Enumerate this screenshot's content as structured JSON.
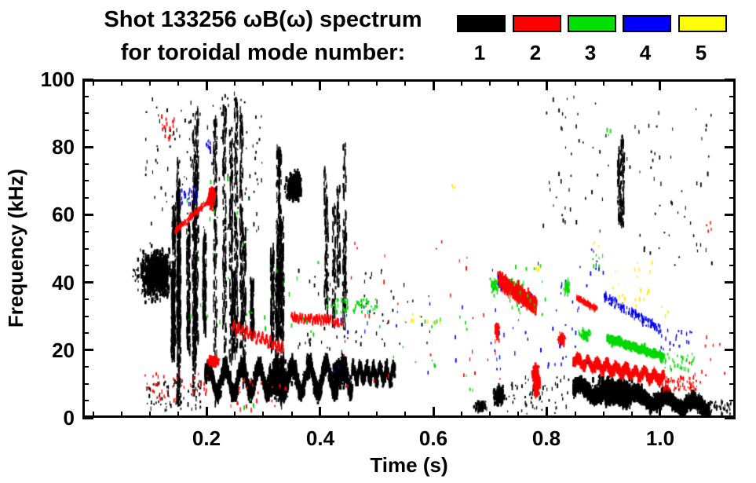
{
  "title": {
    "line1": "Shot 133256 ωB(ω) spectrum",
    "line2": "for toroidal mode number:"
  },
  "legend": {
    "labels": [
      "1",
      "2",
      "3",
      "4",
      "5"
    ],
    "colors": [
      "#000000",
      "#FF0000",
      "#00E000",
      "#0000FF",
      "#FFFF00"
    ]
  },
  "axes": {
    "x": {
      "label": "Time (s)",
      "tick_labels": [
        "0.2",
        "0.4",
        "0.6",
        "0.8",
        "1.0"
      ],
      "ticks": [
        0.2,
        0.4,
        0.6,
        0.8,
        1.0
      ],
      "minor_step": 0.05
    },
    "y": {
      "label": "Frequency (kHz)",
      "tick_labels": [
        "0",
        "20",
        "40",
        "60",
        "80",
        "100"
      ],
      "ticks": [
        0,
        20,
        40,
        60,
        80,
        100
      ],
      "minor_step": 5
    }
  },
  "chart_data": {
    "type": "scatter",
    "title": "Shot 133256 ωB(ω) spectrum for toroidal mode number: 1 2 3 4 5",
    "xlabel": "Time (s)",
    "ylabel": "Frequency (kHz)",
    "xlim": [
      -0.019,
      1.133
    ],
    "ylim": [
      0,
      100
    ],
    "grid": false,
    "legend_position": "top-right",
    "series_colors": {
      "1": "#000000",
      "2": "#FF0000",
      "3": "#00D800",
      "4": "#0000F0",
      "5": "#FFE800"
    },
    "series_meaning": "toroidal mode number n = 1..5",
    "clusters": [
      {
        "mode": 1,
        "shape": "blob",
        "t": [
          0.075,
          0.145
        ],
        "f": [
          33,
          52
        ],
        "n": 1000,
        "size": [
          3,
          8
        ]
      },
      {
        "mode": 1,
        "shape": "scatter",
        "t": [
          0.065,
          0.085
        ],
        "f": [
          40,
          44
        ],
        "n": 12
      },
      {
        "mode": 1,
        "shape": "streaks",
        "t": [
          0.128,
          0.262
        ],
        "f": [
          2,
          97
        ],
        "cols": 16,
        "n": 2200
      },
      {
        "mode": 1,
        "shape": "scatter",
        "t": [
          0.09,
          0.3
        ],
        "f": [
          55,
          96
        ],
        "n": 140
      },
      {
        "mode": 1,
        "shape": "scatter",
        "t": [
          0.09,
          0.19
        ],
        "f": [
          2,
          11
        ],
        "n": 70
      },
      {
        "mode": 1,
        "shape": "streaks",
        "t": [
          0.262,
          0.345
        ],
        "f": [
          2,
          97
        ],
        "cols": 8,
        "n": 900
      },
      {
        "mode": 1,
        "shape": "blob",
        "t": [
          0.335,
          0.372
        ],
        "f": [
          63,
          74
        ],
        "n": 420,
        "size": [
          3,
          8
        ]
      },
      {
        "mode": 1,
        "shape": "streaks",
        "t": [
          0.375,
          0.455
        ],
        "f": [
          25,
          92
        ],
        "cols": 6,
        "n": 350
      },
      {
        "mode": 1,
        "shape": "band",
        "t": [
          0.196,
          0.455
        ],
        "fc": [
          11,
          12
        ],
        "spread": 4.8,
        "wave": [
          4,
          55
        ],
        "n": 2800,
        "size": [
          3,
          9
        ]
      },
      {
        "mode": 1,
        "shape": "blob",
        "t": [
          0.3,
          0.35
        ],
        "f": [
          4,
          18
        ],
        "n": 500,
        "size": [
          3,
          9
        ]
      },
      {
        "mode": 1,
        "shape": "blob",
        "t": [
          0.415,
          0.45
        ],
        "f": [
          8,
          18
        ],
        "n": 300,
        "size": [
          3,
          9
        ]
      },
      {
        "mode": 1,
        "shape": "band",
        "t": [
          0.455,
          0.53
        ],
        "fc": [
          13,
          13
        ],
        "spread": 3.5,
        "wave": [
          2,
          40
        ],
        "n": 600,
        "size": [
          3,
          8
        ]
      },
      {
        "mode": 1,
        "shape": "scatter",
        "t": [
          0.5,
          0.62
        ],
        "f": [
          20,
          42
        ],
        "n": 8
      },
      {
        "mode": 1,
        "shape": "blob",
        "t": [
          0.665,
          0.697
        ],
        "f": [
          1,
          6
        ],
        "n": 90
      },
      {
        "mode": 1,
        "shape": "blob",
        "t": [
          0.7,
          0.727
        ],
        "f": [
          3,
          10
        ],
        "n": 160,
        "size": [
          3,
          7
        ]
      },
      {
        "mode": 1,
        "shape": "scatter",
        "t": [
          0.73,
          0.84
        ],
        "f": [
          1,
          12
        ],
        "n": 60
      },
      {
        "mode": 1,
        "shape": "band",
        "t": [
          0.845,
          1.085
        ],
        "fc": [
          8.5,
          3.2
        ],
        "spread": 3.5,
        "wave": [
          1.5,
          30
        ],
        "n": 3000,
        "size": [
          3,
          8
        ]
      },
      {
        "mode": 1,
        "shape": "blob",
        "t": [
          0.875,
          0.96
        ],
        "f": [
          3,
          13
        ],
        "n": 800,
        "size": [
          3,
          9
        ]
      },
      {
        "mode": 1,
        "shape": "streaks",
        "t": [
          0.922,
          0.938
        ],
        "f": [
          55,
          98
        ],
        "cols": 2,
        "n": 120
      },
      {
        "mode": 1,
        "shape": "scatter",
        "t": [
          0.79,
          0.92
        ],
        "f": [
          55,
          95
        ],
        "n": 40
      },
      {
        "mode": 1,
        "shape": "scatter",
        "t": [
          0.94,
          1.09
        ],
        "f": [
          45,
          93
        ],
        "n": 50
      },
      {
        "mode": 1,
        "shape": "scatter",
        "t": [
          1.085,
          1.125
        ],
        "f": [
          1,
          5
        ],
        "n": 40
      },
      {
        "mode": 1,
        "shape": "scatter",
        "t": [
          0.36,
          0.53
        ],
        "f": [
          20,
          45
        ],
        "n": 60
      },
      {
        "mode": 2,
        "shape": "band",
        "t": [
          0.143,
          0.215
        ],
        "fc": [
          55,
          66
        ],
        "spread": 1.5,
        "n": 160
      },
      {
        "mode": 2,
        "shape": "blob",
        "t": [
          0.198,
          0.216
        ],
        "f": [
          61,
          69
        ],
        "n": 150,
        "size": [
          3,
          7
        ]
      },
      {
        "mode": 2,
        "shape": "scatter",
        "t": [
          0.118,
          0.142
        ],
        "f": [
          82,
          89
        ],
        "n": 18
      },
      {
        "mode": 2,
        "shape": "band",
        "t": [
          0.245,
          0.335
        ],
        "fc": [
          27,
          20.5
        ],
        "spread": 1.4,
        "wave": [
          1.2,
          80
        ],
        "n": 260
      },
      {
        "mode": 2,
        "shape": "band",
        "t": [
          0.348,
          0.418
        ],
        "fc": [
          29.5,
          29
        ],
        "spread": 1.0,
        "wave": [
          0.8,
          90
        ],
        "n": 240
      },
      {
        "mode": 2,
        "shape": "scatter",
        "t": [
          0.42,
          0.44
        ],
        "f": [
          27,
          29
        ],
        "n": 30
      },
      {
        "mode": 2,
        "shape": "blob",
        "t": [
          0.199,
          0.223
        ],
        "f": [
          15,
          18.5
        ],
        "n": 160,
        "size": [
          3,
          7
        ]
      },
      {
        "mode": 2,
        "shape": "scatter",
        "t": [
          0.09,
          0.21
        ],
        "f": [
          5,
          13
        ],
        "n": 45
      },
      {
        "mode": 2,
        "shape": "scatter",
        "t": [
          0.24,
          0.34
        ],
        "f": [
          2,
          12
        ],
        "n": 25
      },
      {
        "mode": 2,
        "shape": "band",
        "t": [
          0.712,
          0.78
        ],
        "fc": [
          41,
          33
        ],
        "spread": 2.2,
        "wave": [
          1.5,
          120
        ],
        "n": 500,
        "size": [
          3,
          8
        ]
      },
      {
        "mode": 2,
        "shape": "blob",
        "t": [
          0.706,
          0.716
        ],
        "f": [
          22,
          30
        ],
        "n": 90
      },
      {
        "mode": 2,
        "shape": "blob",
        "t": [
          0.772,
          0.788
        ],
        "f": [
          5,
          17
        ],
        "n": 260,
        "size": [
          3,
          8
        ]
      },
      {
        "mode": 2,
        "shape": "blob",
        "t": [
          0.817,
          0.833
        ],
        "f": [
          20.5,
          25.5
        ],
        "n": 90
      },
      {
        "mode": 2,
        "shape": "band",
        "t": [
          0.852,
          0.888
        ],
        "fc": [
          35.5,
          32
        ],
        "spread": 1.3,
        "n": 110
      },
      {
        "mode": 2,
        "shape": "band",
        "t": [
          0.845,
          1.005
        ],
        "fc": [
          17,
          11.5
        ],
        "spread": 2.2,
        "wave": [
          1,
          60
        ],
        "n": 1100,
        "size": [
          3,
          8
        ]
      },
      {
        "mode": 2,
        "shape": "scatter",
        "t": [
          1.0,
          1.065
        ],
        "f": [
          8,
          12
        ],
        "n": 70
      },
      {
        "mode": 2,
        "shape": "scatter",
        "t": [
          0.44,
          0.73
        ],
        "f": [
          8,
          52
        ],
        "n": 30
      },
      {
        "mode": 2,
        "shape": "scatter",
        "t": [
          1.05,
          1.12
        ],
        "f": [
          10,
          25
        ],
        "n": 12
      },
      {
        "mode": 2,
        "shape": "scatter",
        "t": [
          1.08,
          1.09
        ],
        "f": [
          54,
          58
        ],
        "n": 4
      },
      {
        "mode": 3,
        "shape": "scatter",
        "t": [
          0.41,
          0.5
        ],
        "f": [
          31,
          35
        ],
        "n": 60
      },
      {
        "mode": 3,
        "shape": "scatter",
        "t": [
          0.15,
          0.28
        ],
        "f": [
          28,
          72
        ],
        "n": 22
      },
      {
        "mode": 3,
        "shape": "scatter",
        "t": [
          0.3,
          0.41
        ],
        "f": [
          20,
          46
        ],
        "n": 18
      },
      {
        "mode": 3,
        "shape": "blob",
        "t": [
          0.698,
          0.716
        ],
        "f": [
          36,
          42
        ],
        "n": 55
      },
      {
        "mode": 3,
        "shape": "blob",
        "t": [
          0.828,
          0.842
        ],
        "f": [
          35,
          42
        ],
        "n": 45
      },
      {
        "mode": 3,
        "shape": "blob",
        "t": [
          0.853,
          0.882
        ],
        "f": [
          22,
          27
        ],
        "n": 70
      },
      {
        "mode": 3,
        "shape": "band",
        "t": [
          0.905,
          1.005
        ],
        "fc": [
          23.5,
          18
        ],
        "spread": 2.0,
        "n": 450,
        "size": [
          3,
          7
        ]
      },
      {
        "mode": 3,
        "shape": "scatter",
        "t": [
          1.0,
          1.06
        ],
        "f": [
          14,
          19
        ],
        "n": 35
      },
      {
        "mode": 3,
        "shape": "scatter",
        "t": [
          0.5,
          0.67
        ],
        "f": [
          8,
          30
        ],
        "n": 18
      },
      {
        "mode": 3,
        "shape": "scatter",
        "t": [
          0.88,
          0.915
        ],
        "f": [
          44,
          50
        ],
        "n": 6
      },
      {
        "mode": 3,
        "shape": "scatter",
        "t": [
          0.905,
          0.915
        ],
        "f": [
          83,
          86
        ],
        "n": 3
      },
      {
        "mode": 3,
        "shape": "scatter",
        "t": [
          0.73,
          0.8
        ],
        "f": [
          30,
          45
        ],
        "n": 25
      },
      {
        "mode": 3,
        "shape": "scatter",
        "t": [
          0.26,
          0.285
        ],
        "f": [
          2,
          6
        ],
        "n": 4
      },
      {
        "mode": 4,
        "shape": "scatter",
        "t": [
          0.152,
          0.182
        ],
        "f": [
          63,
          68
        ],
        "n": 30
      },
      {
        "mode": 4,
        "shape": "scatter",
        "t": [
          0.198,
          0.206
        ],
        "f": [
          78,
          82
        ],
        "n": 8
      },
      {
        "mode": 4,
        "shape": "scatter",
        "t": [
          0.42,
          0.68
        ],
        "f": [
          12,
          35
        ],
        "n": 18
      },
      {
        "mode": 4,
        "shape": "scatter",
        "t": [
          0.7,
          0.88
        ],
        "f": [
          14,
          46
        ],
        "n": 45
      },
      {
        "mode": 4,
        "shape": "band",
        "t": [
          0.9,
          1.0
        ],
        "fc": [
          36,
          26
        ],
        "spread": 2.5,
        "n": 140
      },
      {
        "mode": 4,
        "shape": "scatter",
        "t": [
          1.0,
          1.055
        ],
        "f": [
          20,
          26
        ],
        "n": 18
      },
      {
        "mode": 4,
        "shape": "scatter",
        "t": [
          0.87,
          0.9
        ],
        "f": [
          40,
          50
        ],
        "n": 8
      },
      {
        "mode": 5,
        "shape": "scatter",
        "t": [
          0.54,
          0.615
        ],
        "f": [
          28,
          31
        ],
        "n": 8
      },
      {
        "mode": 5,
        "shape": "scatter",
        "t": [
          0.625,
          0.64
        ],
        "f": [
          66,
          70
        ],
        "n": 3
      },
      {
        "mode": 5,
        "shape": "scatter",
        "t": [
          0.78,
          0.79
        ],
        "f": [
          43,
          47
        ],
        "n": 4
      },
      {
        "mode": 5,
        "shape": "scatter",
        "t": [
          0.88,
          0.9
        ],
        "f": [
          49,
          53
        ],
        "n": 3
      },
      {
        "mode": 5,
        "shape": "scatter",
        "t": [
          0.915,
          0.985
        ],
        "f": [
          33,
          46
        ],
        "n": 22
      },
      {
        "mode": 5,
        "shape": "scatter",
        "t": [
          1.0,
          1.02
        ],
        "f": [
          30,
          34
        ],
        "n": 3
      }
    ]
  }
}
